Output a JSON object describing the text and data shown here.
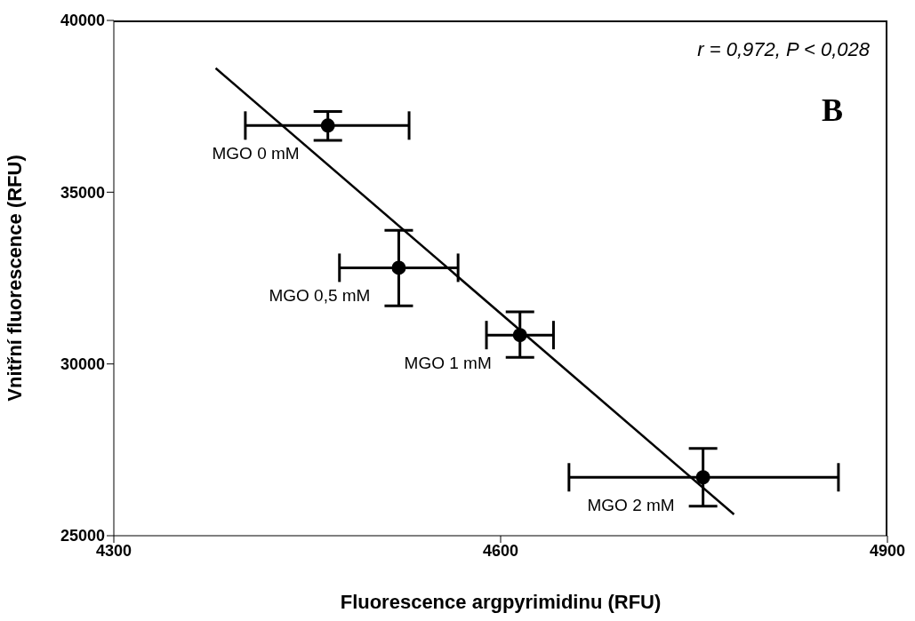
{
  "chart_data": {
    "type": "scatter",
    "xlabel": "Fluorescence argpyrimidinu (RFU)",
    "ylabel": "Vnitřní fluorescence (RFU)",
    "xlim": [
      4300,
      4900
    ],
    "xticks": [
      4300,
      4600,
      4900
    ],
    "ylim": [
      25000,
      40000
    ],
    "yticks": [
      25000,
      30000,
      35000,
      40000
    ],
    "grid": false,
    "legend": false,
    "series": [
      {
        "type": "scatter",
        "color": "#000000",
        "marker": "circle",
        "x": [
          4466,
          4521,
          4615,
          4757
        ],
        "values": [
          36940,
          32800,
          30840,
          26700
        ],
        "errors": [
          [
            36510,
            37350
          ],
          [
            31690,
            33890
          ],
          [
            30190,
            31520
          ],
          [
            25860,
            27540
          ]
        ],
        "xerrors": [
          [
            4402,
            4529
          ],
          [
            4475,
            4567
          ],
          [
            4589,
            4641
          ],
          [
            4653,
            4862
          ]
        ]
      },
      {
        "type": "line",
        "color": "#000000",
        "marker": "none",
        "x": [
          4379,
          4781
        ],
        "values": [
          38610,
          25620
        ]
      }
    ],
    "annotations": [
      "r = 0,972, P < 0,028",
      "B",
      {
        "text": "MGO 0 mM",
        "x": 4466,
        "y": 36940
      },
      {
        "text": "MGO 0,5 mM",
        "x": 4521,
        "y": 32800
      },
      {
        "text": "MGO 1 mM",
        "x": 4615,
        "y": 30840
      },
      {
        "text": "MGO 2 mM",
        "x": 4757,
        "y": 26700
      }
    ]
  }
}
